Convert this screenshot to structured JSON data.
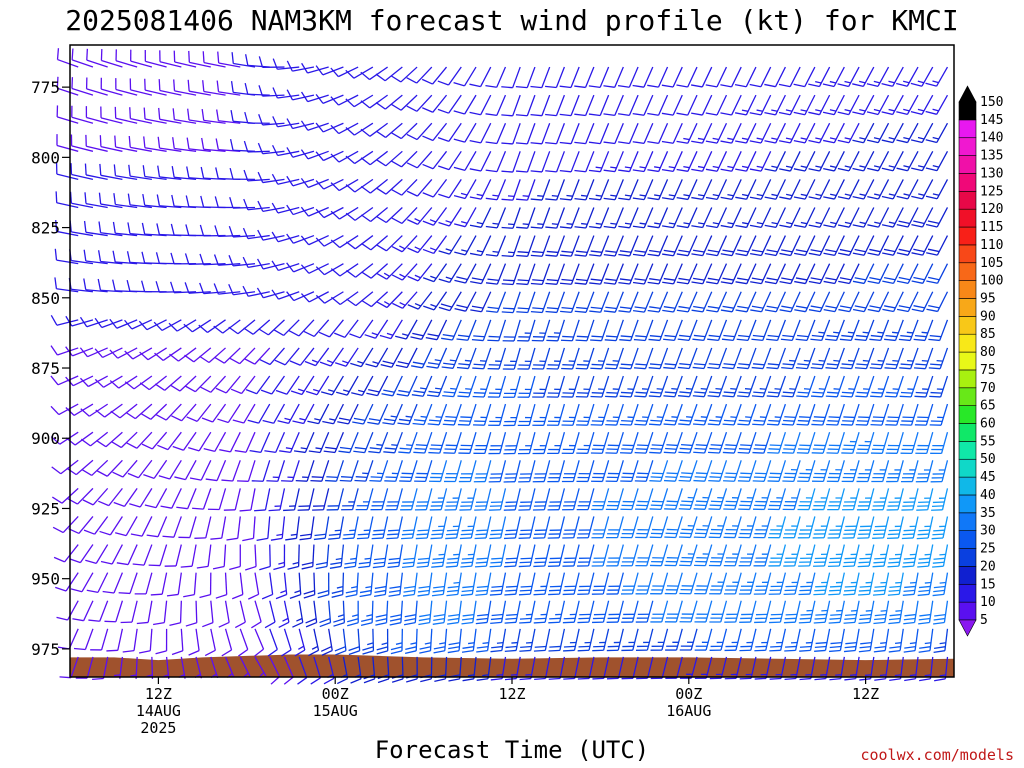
{
  "chart_data": {
    "type": "wind_barb_profile",
    "title": "2025081406 NAM3KM forecast wind profile (kt) for KMCI",
    "xlabel": "Forecast Time (UTC)",
    "credit": "coolwx.com/models",
    "y_axis": {
      "inverted": true,
      "range": [
        985,
        760
      ],
      "ticks": [
        775,
        800,
        825,
        850,
        875,
        900,
        925,
        950,
        975
      ]
    },
    "x_axis": {
      "range_hours": [
        0,
        60
      ],
      "ticks": [
        {
          "hour": 6,
          "lines": [
            "12Z",
            "14AUG",
            "2025"
          ]
        },
        {
          "hour": 18,
          "lines": [
            "00Z",
            "15AUG"
          ]
        },
        {
          "hour": 30,
          "lines": [
            "12Z"
          ]
        },
        {
          "hour": 42,
          "lines": [
            "00Z",
            "16AUG"
          ]
        },
        {
          "hour": 54,
          "lines": [
            "12Z"
          ]
        }
      ]
    },
    "colorbar": {
      "levels": [
        5,
        10,
        15,
        20,
        25,
        30,
        35,
        40,
        45,
        50,
        55,
        60,
        65,
        70,
        75,
        80,
        85,
        90,
        95,
        100,
        105,
        110,
        115,
        120,
        125,
        130,
        135,
        140,
        145,
        150
      ],
      "colors": [
        "#8a18f0",
        "#5a10f0",
        "#2a18e8",
        "#1020d0",
        "#0a40e0",
        "#0a58f0",
        "#1078f8",
        "#1098f8",
        "#10b8e8",
        "#10d8c8",
        "#10e8a8",
        "#10e868",
        "#28e828",
        "#68e818",
        "#a8f010",
        "#e8f818",
        "#f8e818",
        "#f8c818",
        "#f8a818",
        "#f88818",
        "#f86818",
        "#f84818",
        "#f82018",
        "#f01028",
        "#e80848",
        "#f00878",
        "#f010a8",
        "#f018d0",
        "#e818f0",
        "#000000"
      ]
    },
    "terrain": {
      "color": "#a0522d",
      "surface_pressure": [
        {
          "hour": 0,
          "p": 978
        },
        {
          "hour": 3,
          "p": 978
        },
        {
          "hour": 6,
          "p": 979
        },
        {
          "hour": 9,
          "p": 978
        },
        {
          "hour": 12,
          "p": 977.5
        },
        {
          "hour": 15,
          "p": 977
        },
        {
          "hour": 18,
          "p": 977
        },
        {
          "hour": 21,
          "p": 977.5
        },
        {
          "hour": 24,
          "p": 978
        },
        {
          "hour": 30,
          "p": 978.5
        },
        {
          "hour": 36,
          "p": 978
        },
        {
          "hour": 42,
          "p": 978
        },
        {
          "hour": 48,
          "p": 978.5
        },
        {
          "hour": 54,
          "p": 979
        },
        {
          "hour": 60,
          "p": 978.5
        }
      ]
    },
    "wind_field": {
      "hour_step": 1,
      "pressure_levels": [
        765,
        775,
        785,
        795,
        805,
        815,
        825,
        835,
        845,
        855,
        865,
        875,
        885,
        895,
        905,
        915,
        925,
        935,
        945,
        955,
        965,
        975
      ],
      "speed_kt": {
        "columns": [
          {
            "hour": 0,
            "by_level": [
              8,
              8,
              9,
              9,
              10,
              10,
              10,
              10,
              10,
              10,
              10,
              10,
              10,
              10,
              10,
              10,
              10,
              10,
              10,
              10,
              10,
              8
            ]
          },
          {
            "hour": 12,
            "by_level": [
              10,
              10,
              10,
              10,
              10,
              10,
              10,
              10,
              10,
              10,
              9,
              9,
              9,
              9,
              9,
              9,
              9,
              9,
              9,
              9,
              8,
              6
            ]
          },
          {
            "hour": 20,
            "by_level": [
              10,
              10,
              10,
              10,
              10,
              10,
              10,
              10,
              10,
              12,
              15,
              17,
              20,
              22,
              24,
              26,
              27,
              27,
              27,
              27,
              24,
              18
            ]
          },
          {
            "hour": 26,
            "by_level": [
              10,
              10,
              10,
              10,
              12,
              14,
              15,
              17,
              18,
              20,
              24,
              26,
              28,
              30,
              32,
              34,
              34,
              34,
              33,
              32,
              28,
              18
            ]
          },
          {
            "hour": 32,
            "by_level": [
              10,
              10,
              12,
              12,
              15,
              17,
              18,
              20,
              22,
              23,
              24,
              25,
              26,
              27,
              28,
              28,
              28,
              28,
              27,
              26,
              22,
              12
            ]
          },
          {
            "hour": 40,
            "by_level": [
              10,
              11,
              12,
              13,
              15,
              17,
              18,
              19,
              20,
              21,
              22,
              24,
              26,
              28,
              30,
              32,
              32,
              32,
              31,
              30,
              24,
              12
            ]
          },
          {
            "hour": 48,
            "by_level": [
              12,
              13,
              14,
              15,
              16,
              17,
              18,
              19,
              20,
              21,
              22,
              24,
              27,
              30,
              32,
              34,
              35,
              35,
              34,
              32,
              27,
              14
            ]
          },
          {
            "hour": 54,
            "by_level": [
              13,
              14,
              15,
              15,
              16,
              17,
              18,
              20,
              22,
              24,
              25,
              27,
              30,
              33,
              35,
              37,
              38,
              37,
              36,
              34,
              28,
              15
            ]
          },
          {
            "hour": 60,
            "by_level": [
              14,
              15,
              15,
              16,
              17,
              18,
              19,
              20,
              21,
              22,
              23,
              24,
              27,
              30,
              33,
              35,
              36,
              35,
              34,
              30,
              24,
              14
            ]
          }
        ]
      },
      "direction_deg": {
        "columns": [
          {
            "hour": 0,
            "upper": 290,
            "lower": 200
          },
          {
            "hour": 12,
            "upper": 280,
            "lower": 150
          },
          {
            "hour": 20,
            "upper": 240,
            "lower": 175
          },
          {
            "hour": 30,
            "upper": 200,
            "lower": 190
          },
          {
            "hour": 42,
            "upper": 205,
            "lower": 195
          },
          {
            "hour": 60,
            "upper": 210,
            "lower": 185
          }
        ],
        "upper_level_cutoff_p": 850
      }
    }
  }
}
